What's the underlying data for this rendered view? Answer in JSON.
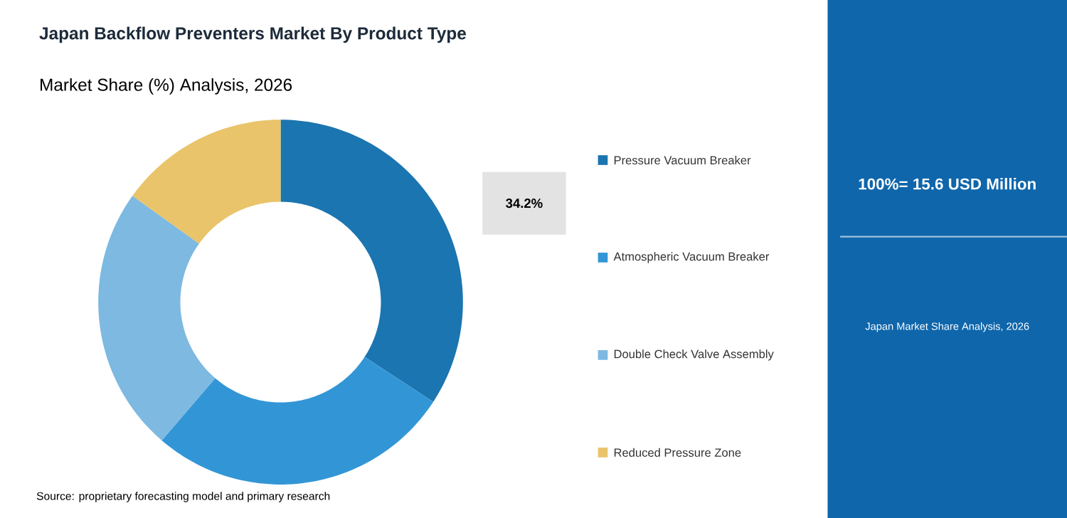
{
  "chart_data": {
    "type": "donut",
    "title": "Japan Backflow Preventers Market By Product Type",
    "subtitle": "Market Share (%) Analysis, 2026",
    "categories": [
      "Pressure Vacuum Breaker",
      "Atmospheric Vacuum Breaker",
      "Double Check Valve Assembly",
      "Reduced Pressure Zone"
    ],
    "values": [
      34.2,
      27.1,
      23.6,
      15.1
    ],
    "colors": [
      "#1b75b0",
      "#3296d6",
      "#7db9e0",
      "#e9c46a"
    ],
    "value_labels": [
      "34.2%",
      null,
      null,
      null
    ],
    "legend": "right",
    "annotations": [
      "100%= 15.6 USD Million",
      "Japan Market Share Analysis, 2026",
      "Source: proprietary forecasting model and primary research"
    ]
  }
}
